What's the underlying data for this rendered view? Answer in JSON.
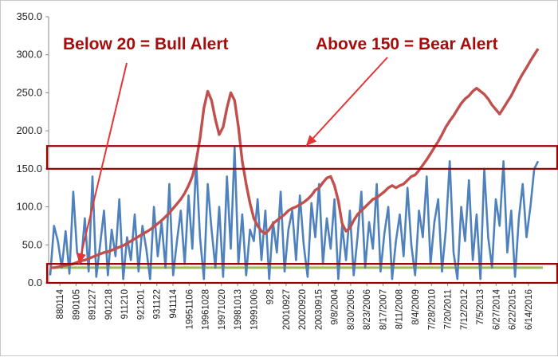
{
  "chart_data": {
    "type": "line",
    "title": "",
    "xlabel": "",
    "ylabel": "",
    "ylim": [
      0,
      350
    ],
    "y_ticks": [
      "0.0",
      "50.0",
      "100.0",
      "150.0",
      "200.0",
      "250.0",
      "300.0",
      "350.0"
    ],
    "x_tick_labels": [
      "880114",
      "890105",
      "891227",
      "901218",
      "911210",
      "921201",
      "931122",
      "941114",
      "19951106",
      "19961028",
      "19971020",
      "19981013",
      "19991006",
      "928",
      "20010927",
      "20020920",
      "20030915",
      "9/8/2004",
      "8/30/2005",
      "8/23/2006",
      "8/17/2007",
      "8/11/2008",
      "8/4/2009",
      "7/28/2010",
      "7/20/2011",
      "7/12/2012",
      "7/5/2013",
      "6/27/2014",
      "6/22/2015",
      "6/14/2016"
    ],
    "grid": false,
    "legend": "none",
    "colors": {
      "price": "#c0504d",
      "oscillator": "#4f81bd",
      "reference_line": "#9bbb59",
      "annotation": "#a50d0d",
      "band_outline": "#990000"
    },
    "series": [
      {
        "role": "price",
        "values": [
          20,
          20,
          21,
          22,
          23,
          24,
          25,
          27,
          29,
          30,
          32,
          34,
          36,
          38,
          40,
          41,
          43,
          45,
          47,
          49,
          52,
          55,
          58,
          61,
          64,
          67,
          70,
          74,
          78,
          82,
          87,
          92,
          98,
          104,
          110,
          118,
          128,
          140,
          160,
          190,
          230,
          252,
          240,
          215,
          195,
          205,
          230,
          250,
          240,
          205,
          160,
          130,
          105,
          85,
          75,
          68,
          65,
          70,
          78,
          82,
          86,
          90,
          95,
          98,
          100,
          103,
          106,
          110,
          115,
          122,
          125,
          132,
          138,
          140,
          128,
          108,
          78,
          68,
          72,
          82,
          90,
          95,
          100,
          105,
          110,
          112,
          116,
          120,
          125,
          128,
          125,
          128,
          130,
          135,
          140,
          142,
          148,
          155,
          162,
          170,
          178,
          186,
          195,
          205,
          213,
          220,
          228,
          236,
          242,
          246,
          252,
          256,
          252,
          248,
          242,
          234,
          228,
          222,
          230,
          238,
          246,
          256,
          266,
          275,
          283,
          292,
          300,
          308
        ]
      },
      {
        "role": "oscillator",
        "values": [
          10,
          75,
          55,
          20,
          68,
          12,
          120,
          40,
          25,
          85,
          15,
          140,
          8,
          50,
          95,
          10,
          70,
          35,
          110,
          5,
          60,
          30,
          90,
          15,
          75,
          45,
          5,
          100,
          35,
          80,
          20,
          130,
          10,
          55,
          95,
          25,
          115,
          45,
          160,
          60,
          5,
          130,
          70,
          20,
          100,
          8,
          140,
          45,
          178,
          25,
          90,
          10,
          70,
          55,
          110,
          30,
          95,
          5,
          80,
          40,
          120,
          15,
          70,
          95,
          30,
          115,
          50,
          8,
          105,
          60,
          130,
          25,
          85,
          45,
          110,
          5,
          75,
          30,
          95,
          10,
          60,
          120,
          20,
          80,
          45,
          130,
          15,
          65,
          100,
          5,
          55,
          90,
          35,
          125,
          50,
          10,
          95,
          60,
          140,
          25,
          80,
          110,
          15,
          70,
          160,
          40,
          5,
          100,
          55,
          135,
          30,
          90,
          5,
          150,
          60,
          20,
          110,
          75,
          160,
          40,
          95,
          8,
          85,
          130,
          60,
          100,
          150,
          160
        ]
      },
      {
        "role": "reference_line",
        "values": [
          20,
          20
        ]
      }
    ],
    "annotations": [
      {
        "text": "Below 20 = Bull Alert",
        "band": [
          0,
          25
        ]
      },
      {
        "text": "Above 150 = Bear Alert",
        "band": [
          150,
          180
        ]
      }
    ]
  }
}
